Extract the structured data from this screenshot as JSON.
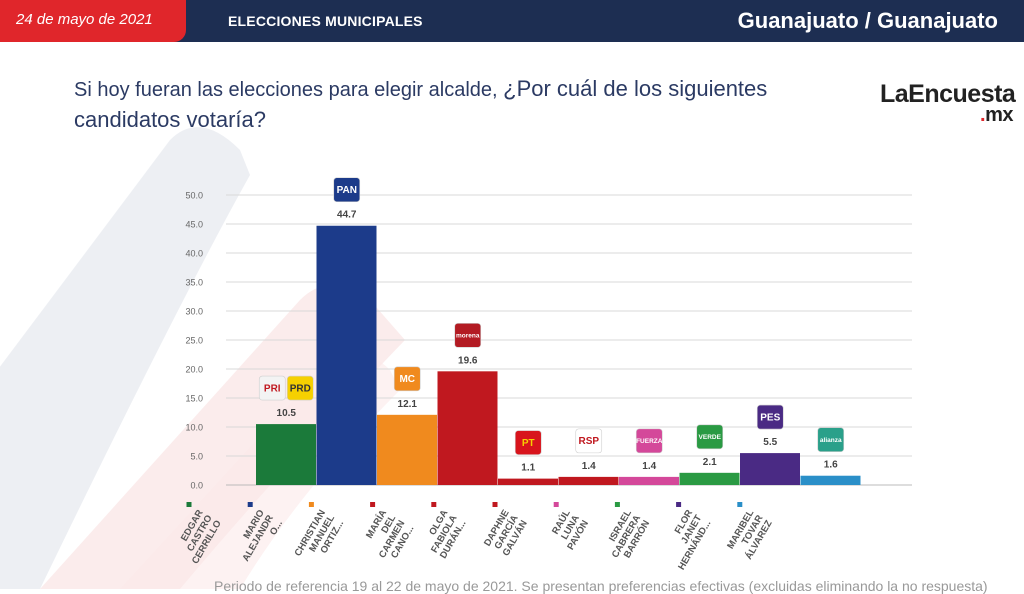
{
  "header": {
    "date": "24 de mayo de 2021",
    "section": "ELECCIONES MUNICIPALES",
    "location": "Guanajuato / Guanajuato"
  },
  "question": {
    "part1": "Si hoy fueran las elecciones para elegir alcalde, ",
    "part2": "¿Por cuál de los siguientes candidatos votaría?"
  },
  "brand": {
    "name": "LaEncuesta",
    "dot": ".",
    "suffix": "mx"
  },
  "footer_note": "Periodo de referencia 19 al 22 de mayo de 2021. Se presentan preferencias efectivas (excluidas eliminando la no respuesta)",
  "chart_data": {
    "type": "bar",
    "ylim": [
      0,
      50
    ],
    "yticks": [
      "0.0",
      "5.0",
      "10.0",
      "15.0",
      "20.0",
      "25.0",
      "30.0",
      "35.0",
      "40.0",
      "45.0",
      "50.0"
    ],
    "grid": true,
    "categories": [
      "EDGAR CASTRO CERRILLO",
      "MARIO ALEJANDR O...",
      "CHRISTIAN MANUEL ORTIZ...",
      "MARÍA DEL CARMEN CANO...",
      "OLGA FABIOLA DURÁN...",
      "DAPHNE GARCÍA GALVÁN",
      "RAÚL LUNA PAVÓN",
      "ISRAEL CABRERA BARRÓN",
      "FLOR JANET HERNÁND...",
      "MARIBEL TOVAR ÁLVAREZ"
    ],
    "values": [
      10.5,
      44.7,
      12.1,
      19.6,
      1.1,
      1.4,
      1.4,
      2.1,
      5.5,
      1.6
    ],
    "value_labels": [
      "10.5",
      "44.7",
      "12.1",
      "19.6",
      "1.1",
      "1.4",
      "1.4",
      "2.1",
      "5.5",
      "1.6"
    ],
    "colors": [
      "#1b7a3a",
      "#1c3b8a",
      "#f08a1e",
      "#c0181f",
      "#c0181f",
      "#c0181f",
      "#d4489a",
      "#2a9a43",
      "#4a2a84",
      "#2a8fc8"
    ],
    "party_logos": [
      [
        {
          "text": "PRI",
          "bg": "#f3f3f3",
          "fg": "#c0181f"
        },
        {
          "text": "PRD",
          "bg": "#f6d000",
          "fg": "#333"
        }
      ],
      [
        {
          "text": "PAN",
          "bg": "#1c3b8a",
          "fg": "#ffffff"
        }
      ],
      [
        {
          "text": "MC",
          "bg": "#f08a1e",
          "fg": "#ffffff"
        }
      ],
      [
        {
          "text": "morena",
          "bg": "#b31b23",
          "fg": "#ffffff"
        }
      ],
      [
        {
          "text": "PT",
          "bg": "#d8141c",
          "fg": "#f6d000"
        }
      ],
      [
        {
          "text": "RSP",
          "bg": "#ffffff",
          "fg": "#c0181f"
        }
      ],
      [
        {
          "text": "FUERZA",
          "bg": "#d4489a",
          "fg": "#ffffff"
        }
      ],
      [
        {
          "text": "VERDE",
          "bg": "#2a9a43",
          "fg": "#ffffff"
        }
      ],
      [
        {
          "text": "PES",
          "bg": "#4a2a84",
          "fg": "#ffffff"
        }
      ],
      [
        {
          "text": "alianza",
          "bg": "#2aa08a",
          "fg": "#ffffff"
        }
      ]
    ]
  }
}
